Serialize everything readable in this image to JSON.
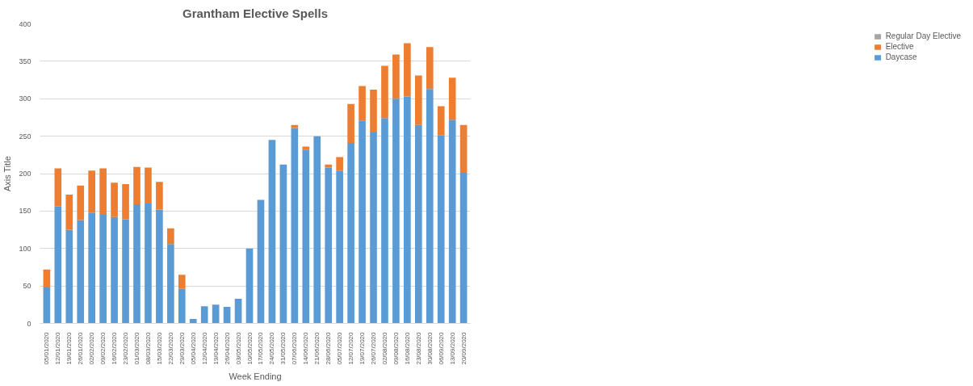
{
  "chart_data": {
    "type": "bar",
    "title": "Grantham Elective Spells",
    "xlabel": "Week Ending",
    "ylabel": "Axis Title",
    "categories": [
      "05/01/2020",
      "12/01/2020",
      "19/01/2020",
      "26/01/2020",
      "02/02/2020",
      "09/02/2020",
      "16/02/2020",
      "23/02/2020",
      "01/03/2020",
      "08/03/2020",
      "15/03/2020",
      "22/03/2020",
      "29/03/2020",
      "05/04/2020",
      "12/04/2020",
      "19/04/2020",
      "26/04/2020",
      "03/05/2020",
      "10/05/2020",
      "17/05/2020",
      "24/05/2020",
      "31/05/2020",
      "07/06/2020",
      "14/06/2020",
      "21/06/2020",
      "28/06/2020",
      "05/07/2020",
      "12/07/2020",
      "19/07/2020",
      "26/07/2020",
      "02/08/2020",
      "09/08/2020",
      "16/08/2020",
      "23/08/2020",
      "30/08/2020",
      "06/09/2020",
      "13/09/2020",
      "20/09/2020"
    ],
    "stacked": true,
    "series": [
      {
        "name": "Daycase",
        "color": "#5b9bd5",
        "values": [
          48,
          156,
          125,
          138,
          148,
          145,
          142,
          139,
          159,
          160,
          152,
          106,
          46,
          6,
          23,
          25,
          22,
          33,
          100,
          165,
          245,
          212,
          261,
          232,
          250,
          208,
          204,
          241,
          271,
          255,
          274,
          300,
          303,
          265,
          313,
          251,
          272,
          201
        ]
      },
      {
        "name": "Elective",
        "color": "#ed7d31",
        "values": [
          24,
          51,
          47,
          46,
          56,
          62,
          46,
          47,
          50,
          48,
          37,
          21,
          19,
          0,
          0,
          0,
          0,
          0,
          0,
          0,
          0,
          0,
          4,
          4,
          0,
          4,
          18,
          52,
          46,
          57,
          70,
          59,
          71,
          66,
          56,
          39,
          56,
          64
        ]
      },
      {
        "name": "Regular Day Elective",
        "color": "#a5a5a5",
        "values": [
          0,
          0,
          0,
          0,
          0,
          0,
          0,
          0,
          0,
          0,
          0,
          0,
          0,
          0,
          0,
          0,
          0,
          0,
          0,
          0,
          0,
          0,
          0,
          0,
          0,
          0,
          0,
          0,
          0,
          0,
          0,
          0,
          0,
          0,
          0,
          0,
          0,
          0
        ]
      }
    ],
    "ylim": [
      0,
      400
    ],
    "yticks": [
      0,
      50,
      100,
      150,
      200,
      250,
      300,
      350,
      400
    ],
    "grid": "y",
    "legend": "right"
  }
}
